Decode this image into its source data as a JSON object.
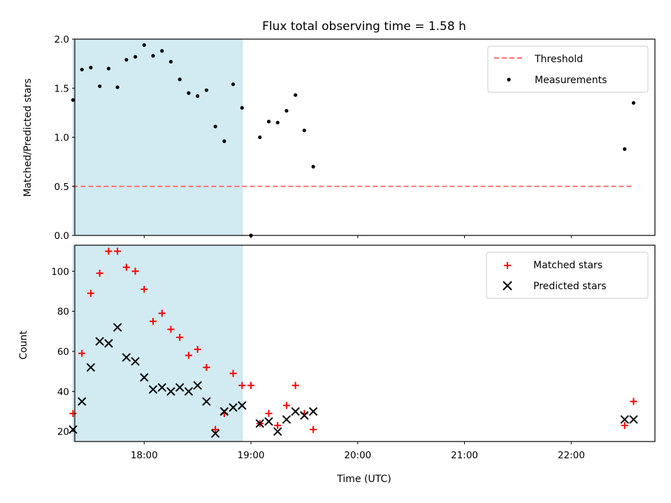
{
  "chart_data": [
    {
      "type": "scatter",
      "title": "Flux total observing time = 1.58 h",
      "xlabel": "",
      "ylabel": "Matched/Predicted stars",
      "xlim": [
        "17:21",
        "22:47"
      ],
      "ylim": [
        0,
        2.0
      ],
      "yticks": [
        "0.0",
        "0.5",
        "1.0",
        "1.5",
        "2.0"
      ],
      "legend_position": "top-right",
      "shaded_interval": {
        "start": "17:20",
        "end": "18:55",
        "color": "#add8e6"
      },
      "threshold": {
        "name": "Threshold",
        "y": 0.5,
        "x_start": "17:20",
        "x_end": "22:35",
        "color": "#ff7070"
      },
      "series": [
        {
          "name": "Measurements",
          "color": "#000000",
          "marker": "dot",
          "points": [
            [
              "17:20",
              1.38
            ],
            [
              "17:25",
              1.69
            ],
            [
              "17:30",
              1.71
            ],
            [
              "17:35",
              1.52
            ],
            [
              "17:40",
              1.7
            ],
            [
              "17:45",
              1.51
            ],
            [
              "17:50",
              1.79
            ],
            [
              "17:55",
              1.82
            ],
            [
              "18:00",
              1.94
            ],
            [
              "18:05",
              1.83
            ],
            [
              "18:10",
              1.88
            ],
            [
              "18:15",
              1.77
            ],
            [
              "18:20",
              1.59
            ],
            [
              "18:25",
              1.45
            ],
            [
              "18:30",
              1.42
            ],
            [
              "18:35",
              1.48
            ],
            [
              "18:40",
              1.11
            ],
            [
              "18:45",
              0.96
            ],
            [
              "18:50",
              1.54
            ],
            [
              "18:55",
              1.3
            ],
            [
              "19:00",
              0.0
            ],
            [
              "19:05",
              1.0
            ],
            [
              "19:10",
              1.16
            ],
            [
              "19:15",
              1.15
            ],
            [
              "19:20",
              1.27
            ],
            [
              "19:25",
              1.43
            ],
            [
              "19:30",
              1.07
            ],
            [
              "19:35",
              0.7
            ],
            [
              "22:30",
              0.88
            ],
            [
              "22:35",
              1.35
            ]
          ]
        }
      ]
    },
    {
      "type": "scatter",
      "title": "",
      "xlabel": "Time (UTC)",
      "ylabel": "Count",
      "xlim": [
        "17:21",
        "22:47"
      ],
      "ylim": [
        15,
        113
      ],
      "xticks": [
        "18:00",
        "19:00",
        "20:00",
        "21:00",
        "22:00"
      ],
      "yticks": [
        "20",
        "40",
        "60",
        "80",
        "100"
      ],
      "legend_position": "top-right",
      "shaded_interval": {
        "start": "17:20",
        "end": "18:55",
        "color": "#add8e6"
      },
      "series": [
        {
          "name": "Matched stars",
          "color": "#ff0000",
          "marker": "plus",
          "points": [
            [
              "17:20",
              29
            ],
            [
              "17:25",
              59
            ],
            [
              "17:30",
              89
            ],
            [
              "17:35",
              99
            ],
            [
              "17:40",
              110
            ],
            [
              "17:45",
              110
            ],
            [
              "17:50",
              102
            ],
            [
              "17:55",
              100
            ],
            [
              "18:00",
              91
            ],
            [
              "18:05",
              75
            ],
            [
              "18:10",
              79
            ],
            [
              "18:15",
              71
            ],
            [
              "18:20",
              67
            ],
            [
              "18:25",
              58
            ],
            [
              "18:30",
              61
            ],
            [
              "18:35",
              52
            ],
            [
              "18:40",
              21
            ],
            [
              "18:45",
              29
            ],
            [
              "18:50",
              49
            ],
            [
              "18:55",
              43
            ],
            [
              "19:00",
              43
            ],
            [
              "19:05",
              24
            ],
            [
              "19:10",
              29
            ],
            [
              "19:15",
              23
            ],
            [
              "19:20",
              33
            ],
            [
              "19:25",
              43
            ],
            [
              "19:30",
              29
            ],
            [
              "19:35",
              21
            ],
            [
              "22:30",
              23
            ],
            [
              "22:35",
              35
            ]
          ]
        },
        {
          "name": "Predicted stars",
          "color": "#000000",
          "marker": "x",
          "points": [
            [
              "17:20",
              21
            ],
            [
              "17:25",
              35
            ],
            [
              "17:30",
              52
            ],
            [
              "17:35",
              65
            ],
            [
              "17:40",
              64
            ],
            [
              "17:45",
              72
            ],
            [
              "17:50",
              57
            ],
            [
              "17:55",
              55
            ],
            [
              "18:00",
              47
            ],
            [
              "18:05",
              41
            ],
            [
              "18:10",
              42
            ],
            [
              "18:15",
              40
            ],
            [
              "18:20",
              42
            ],
            [
              "18:25",
              40
            ],
            [
              "18:30",
              43
            ],
            [
              "18:35",
              35
            ],
            [
              "18:40",
              19
            ],
            [
              "18:45",
              30
            ],
            [
              "18:50",
              32
            ],
            [
              "18:55",
              33
            ],
            [
              "19:05",
              24
            ],
            [
              "19:10",
              25
            ],
            [
              "19:15",
              20
            ],
            [
              "19:20",
              26
            ],
            [
              "19:25",
              30
            ],
            [
              "19:30",
              28
            ],
            [
              "19:35",
              30
            ],
            [
              "22:30",
              26
            ],
            [
              "22:35",
              26
            ]
          ]
        }
      ]
    }
  ]
}
